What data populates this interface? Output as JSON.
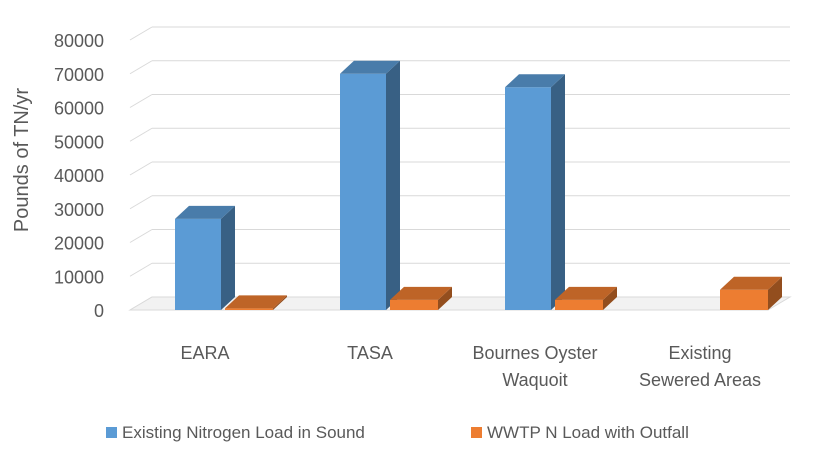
{
  "chart_data": {
    "type": "bar",
    "style": "3d-clustered-column",
    "categories": [
      [
        "EARA"
      ],
      [
        "TASA"
      ],
      [
        "Bournes Oyster",
        "Waquoit"
      ],
      [
        "Existing",
        "Sewered Areas"
      ]
    ],
    "series": [
      {
        "name": "Existing Nitrogen Load in Sound",
        "color": "#5B9BD5",
        "values": [
          27000,
          70000,
          66000,
          0
        ]
      },
      {
        "name": "WWTP N Load with Outfall",
        "color": "#ED7D31",
        "values": [
          500,
          3000,
          3000,
          6000
        ]
      }
    ],
    "ylabel": "Pounds of TN/yr",
    "xlabel": "",
    "title": "",
    "ylim": [
      0,
      80000
    ],
    "yticks": [
      0,
      10000,
      20000,
      30000,
      40000,
      50000,
      60000,
      70000,
      80000
    ],
    "grid": true,
    "legend_position": "bottom"
  }
}
